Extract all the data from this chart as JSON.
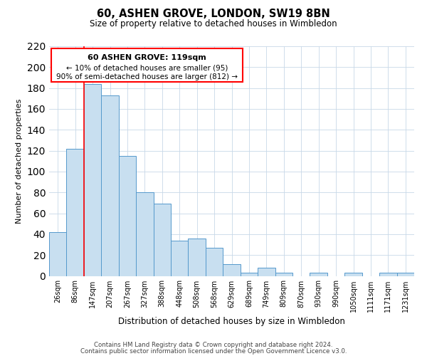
{
  "title": "60, ASHEN GROVE, LONDON, SW19 8BN",
  "subtitle": "Size of property relative to detached houses in Wimbledon",
  "xlabel": "Distribution of detached houses by size in Wimbledon",
  "ylabel": "Number of detached properties",
  "bar_color": "#c8dff0",
  "bar_edge_color": "#5599cc",
  "grid_color": "#c8d8e8",
  "background_color": "#ffffff",
  "categories": [
    "26sqm",
    "86sqm",
    "147sqm",
    "207sqm",
    "267sqm",
    "327sqm",
    "388sqm",
    "448sqm",
    "508sqm",
    "568sqm",
    "629sqm",
    "689sqm",
    "749sqm",
    "809sqm",
    "870sqm",
    "930sqm",
    "990sqm",
    "1050sqm",
    "1111sqm",
    "1171sqm",
    "1231sqm"
  ],
  "bar_heights": [
    42,
    122,
    184,
    173,
    115,
    80,
    69,
    34,
    36,
    27,
    11,
    3,
    8,
    3,
    0,
    3,
    0,
    3,
    0,
    3,
    3
  ],
  "ylim": [
    0,
    220
  ],
  "yticks": [
    0,
    20,
    40,
    60,
    80,
    100,
    120,
    140,
    160,
    180,
    200,
    220
  ],
  "red_line_x": 1.5,
  "annotation_title": "60 ASHEN GROVE: 119sqm",
  "annotation_line1": "← 10% of detached houses are smaller (95)",
  "annotation_line2": "90% of semi-detached houses are larger (812) →",
  "footer_line1": "Contains HM Land Registry data © Crown copyright and database right 2024.",
  "footer_line2": "Contains public sector information licensed under the Open Government Licence v3.0."
}
